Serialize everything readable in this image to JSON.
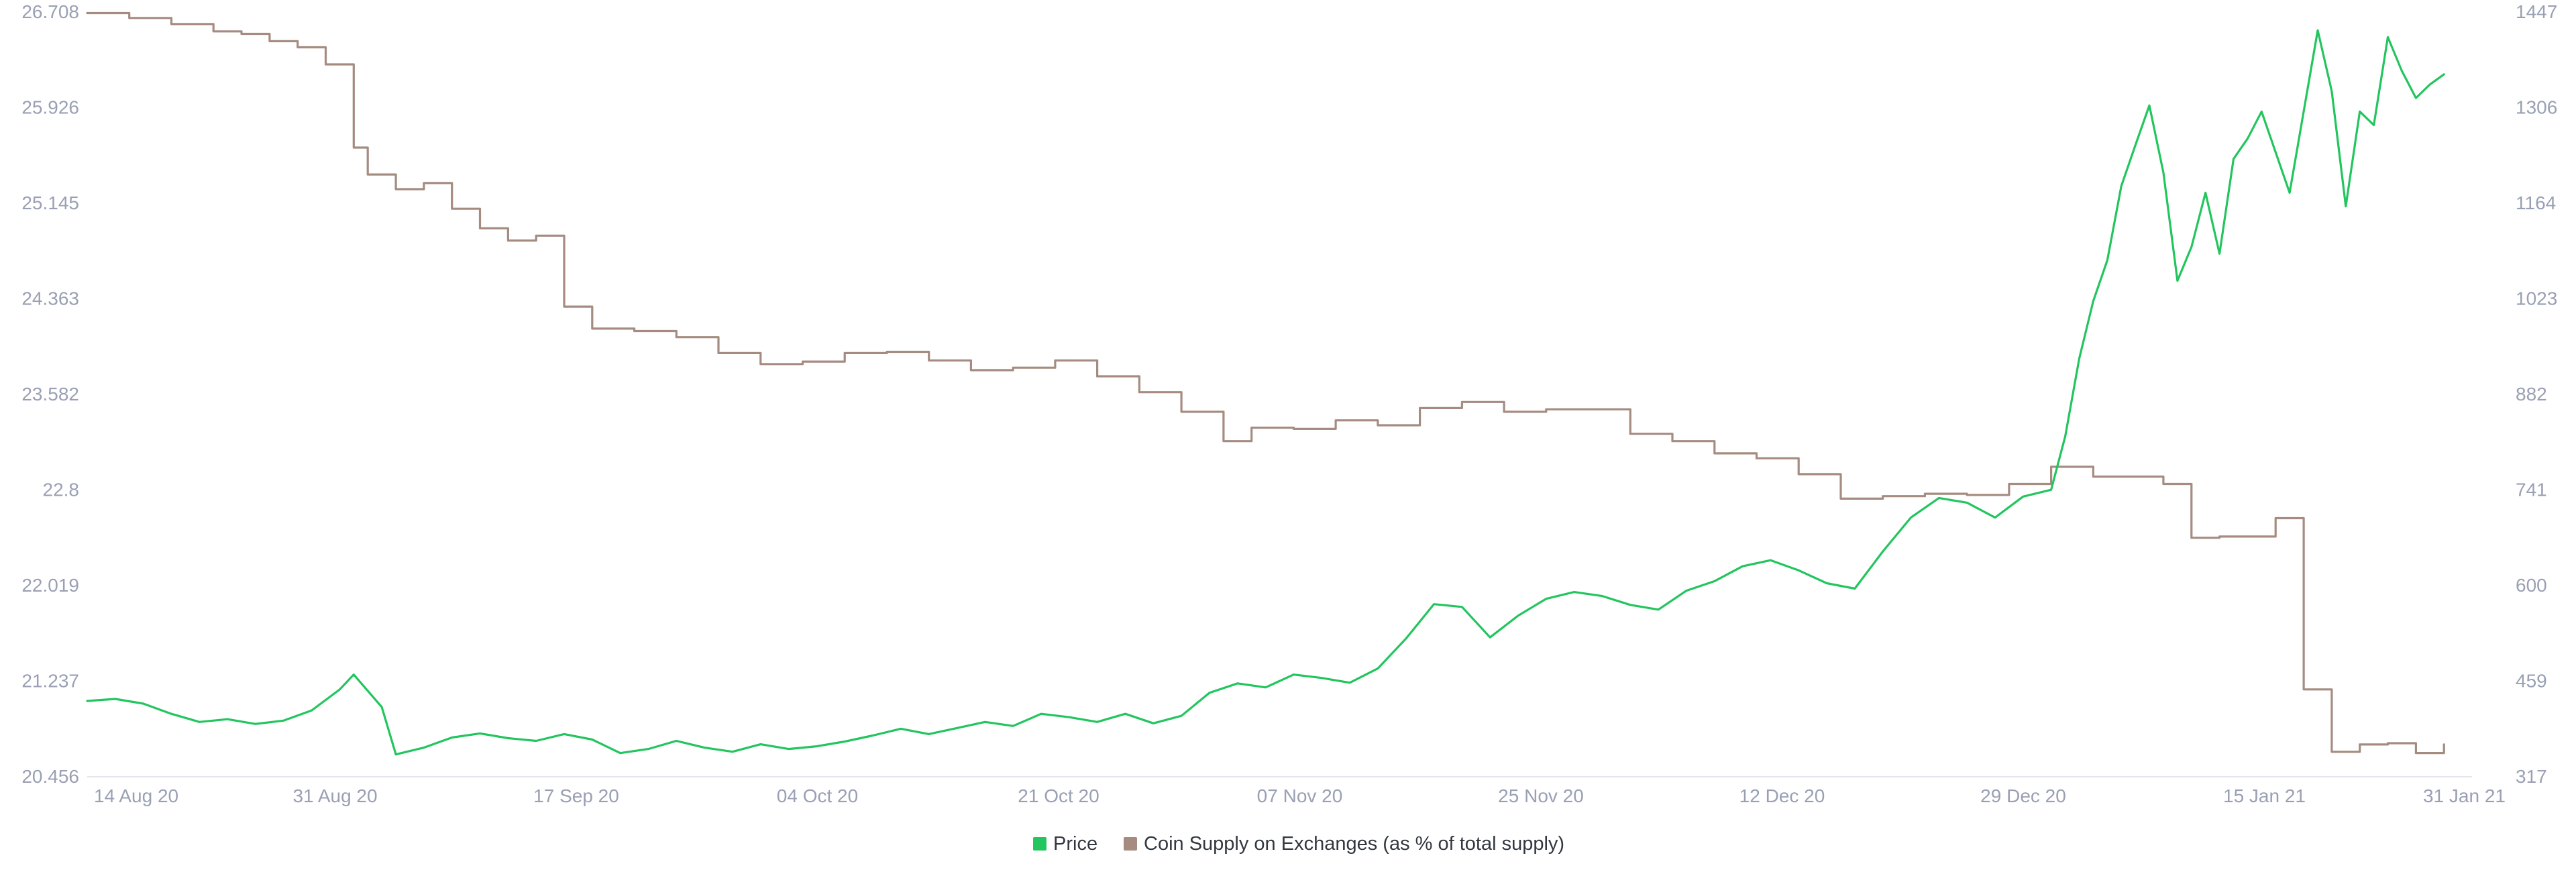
{
  "chart_data": {
    "type": "line",
    "title": "",
    "xlabel": "",
    "ylabel_left": "",
    "ylabel_right": "",
    "x_ticks": [
      "14 Aug 20",
      "31 Aug 20",
      "17 Sep 20",
      "04 Oct 20",
      "21 Oct 20",
      "07 Nov 20",
      "25 Nov 20",
      "12 Dec 20",
      "29 Dec 20",
      "15 Jan 21",
      "31 Jan 21"
    ],
    "x_range": [
      "2020-08-14",
      "2021-01-31"
    ],
    "y_left_ticks": [
      "26.708",
      "25.926",
      "25.145",
      "24.363",
      "23.582",
      "22.8",
      "22.019",
      "21.237",
      "20.456"
    ],
    "y_left_range": [
      20.456,
      26.708
    ],
    "y_right_ticks": [
      "1447",
      "1306",
      "1164",
      "1023",
      "882",
      "741",
      "600",
      "459",
      "317"
    ],
    "y_right_range": [
      317,
      1447
    ],
    "grid": false,
    "legend_position": "bottom-center",
    "legend": [
      {
        "label": "Price",
        "color": "#22c55e"
      },
      {
        "label": "Coin Supply on Exchanges (as % of total supply)",
        "color": "#a58b80"
      }
    ],
    "series": [
      {
        "name": "Coin Supply on Exchanges (as % of total supply)",
        "axis": "left",
        "color": "#a58b80",
        "x": [
          "2020-08-14",
          "2020-08-17",
          "2020-08-20",
          "2020-08-23",
          "2020-08-25",
          "2020-08-27",
          "2020-08-29",
          "2020-08-31",
          "2020-09-02",
          "2020-09-03",
          "2020-09-05",
          "2020-09-07",
          "2020-09-09",
          "2020-09-11",
          "2020-09-13",
          "2020-09-15",
          "2020-09-17",
          "2020-09-19",
          "2020-09-22",
          "2020-09-25",
          "2020-09-28",
          "2020-10-01",
          "2020-10-04",
          "2020-10-07",
          "2020-10-10",
          "2020-10-13",
          "2020-10-16",
          "2020-10-19",
          "2020-10-22",
          "2020-10-25",
          "2020-10-28",
          "2020-10-31",
          "2020-11-03",
          "2020-11-05",
          "2020-11-08",
          "2020-11-11",
          "2020-11-14",
          "2020-11-17",
          "2020-11-20",
          "2020-11-23",
          "2020-11-26",
          "2020-11-29",
          "2020-12-02",
          "2020-12-05",
          "2020-12-08",
          "2020-12-11",
          "2020-12-14",
          "2020-12-17",
          "2020-12-20",
          "2020-12-23",
          "2020-12-26",
          "2020-12-29",
          "2021-01-01",
          "2021-01-04",
          "2021-01-07",
          "2021-01-09",
          "2021-01-11",
          "2021-01-13",
          "2021-01-15",
          "2021-01-17",
          "2021-01-19",
          "2021-01-21",
          "2021-01-23",
          "2021-01-25",
          "2021-01-27",
          "2021-01-29"
        ],
        "values": [
          26.7,
          26.66,
          26.61,
          26.55,
          26.53,
          26.47,
          26.42,
          26.28,
          25.6,
          25.38,
          25.26,
          25.31,
          25.1,
          24.94,
          24.84,
          24.88,
          24.3,
          24.12,
          24.1,
          24.05,
          23.92,
          23.83,
          23.85,
          23.92,
          23.93,
          23.86,
          23.78,
          23.8,
          23.86,
          23.73,
          23.6,
          23.44,
          23.2,
          23.31,
          23.3,
          23.37,
          23.33,
          23.47,
          23.52,
          23.44,
          23.46,
          23.46,
          23.26,
          23.2,
          23.1,
          23.06,
          22.93,
          22.73,
          22.75,
          22.77,
          22.76,
          22.85,
          22.99,
          22.91,
          22.91,
          22.85,
          22.41,
          22.42,
          22.42,
          22.57,
          21.17,
          20.66,
          20.72,
          20.73,
          20.65,
          20.72
        ]
      },
      {
        "name": "Price",
        "axis": "right",
        "color": "#22c55e",
        "x": [
          "2020-08-14",
          "2020-08-16",
          "2020-08-18",
          "2020-08-20",
          "2020-08-22",
          "2020-08-24",
          "2020-08-26",
          "2020-08-28",
          "2020-08-30",
          "2020-09-01",
          "2020-09-02",
          "2020-09-04",
          "2020-09-05",
          "2020-09-07",
          "2020-09-09",
          "2020-09-11",
          "2020-09-13",
          "2020-09-15",
          "2020-09-17",
          "2020-09-19",
          "2020-09-21",
          "2020-09-23",
          "2020-09-25",
          "2020-09-27",
          "2020-09-29",
          "2020-10-01",
          "2020-10-03",
          "2020-10-05",
          "2020-10-07",
          "2020-10-09",
          "2020-10-11",
          "2020-10-13",
          "2020-10-15",
          "2020-10-17",
          "2020-10-19",
          "2020-10-21",
          "2020-10-23",
          "2020-10-25",
          "2020-10-27",
          "2020-10-29",
          "2020-10-31",
          "2020-11-02",
          "2020-11-04",
          "2020-11-06",
          "2020-11-08",
          "2020-11-10",
          "2020-11-12",
          "2020-11-14",
          "2020-11-16",
          "2020-11-18",
          "2020-11-20",
          "2020-11-22",
          "2020-11-24",
          "2020-11-26",
          "2020-11-28",
          "2020-11-30",
          "2020-12-02",
          "2020-12-04",
          "2020-12-06",
          "2020-12-08",
          "2020-12-10",
          "2020-12-12",
          "2020-12-14",
          "2020-12-16",
          "2020-12-18",
          "2020-12-20",
          "2020-12-22",
          "2020-12-24",
          "2020-12-26",
          "2020-12-28",
          "2020-12-30",
          "2021-01-01",
          "2021-01-02",
          "2021-01-03",
          "2021-01-04",
          "2021-01-05",
          "2021-01-06",
          "2021-01-07",
          "2021-01-08",
          "2021-01-09",
          "2021-01-10",
          "2021-01-11",
          "2021-01-12",
          "2021-01-13",
          "2021-01-14",
          "2021-01-15",
          "2021-01-16",
          "2021-01-18",
          "2021-01-20",
          "2021-01-21",
          "2021-01-22",
          "2021-01-23",
          "2021-01-24",
          "2021-01-25",
          "2021-01-26",
          "2021-01-27",
          "2021-01-28",
          "2021-01-29"
        ],
        "values": [
          429,
          432,
          425,
          410,
          398,
          402,
          395,
          400,
          415,
          446,
          468,
          420,
          350,
          360,
          375,
          381,
          374,
          370,
          380,
          372,
          352,
          358,
          370,
          360,
          354,
          365,
          358,
          362,
          369,
          378,
          388,
          380,
          389,
          398,
          392,
          410,
          405,
          398,
          410,
          396,
          407,
          441,
          455,
          449,
          468,
          463,
          456,
          477,
          521,
          572,
          568,
          523,
          555,
          580,
          590,
          584,
          571,
          564,
          592,
          606,
          628,
          637,
          622,
          603,
          595,
          650,
          700,
          729,
          722,
          700,
          731,
          741,
          820,
          935,
          1020,
          1080,
          1190,
          1250,
          1309,
          1210,
          1050,
          1100,
          1180,
          1090,
          1230,
          1260,
          1300,
          1180,
          1420,
          1330,
          1160,
          1300,
          1280,
          1410,
          1360,
          1320,
          1340,
          1355
        ]
      }
    ]
  }
}
